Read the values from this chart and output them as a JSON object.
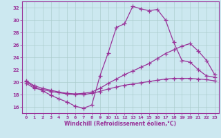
{
  "xlabel": "Windchill (Refroidissement éolien,°C)",
  "background_color": "#cce8f0",
  "line_color": "#993399",
  "grid_color": "#aacccc",
  "ylim": [
    15,
    33
  ],
  "xlim": [
    -0.5,
    23.5
  ],
  "yticks": [
    16,
    18,
    20,
    22,
    24,
    26,
    28,
    30,
    32
  ],
  "xticks": [
    0,
    1,
    2,
    3,
    4,
    5,
    6,
    7,
    8,
    9,
    10,
    11,
    12,
    13,
    14,
    15,
    16,
    17,
    18,
    19,
    20,
    21,
    22,
    23
  ],
  "hours": [
    0,
    1,
    2,
    3,
    4,
    5,
    6,
    7,
    8,
    9,
    10,
    11,
    12,
    13,
    14,
    15,
    16,
    17,
    18,
    19,
    20,
    21,
    22,
    23
  ],
  "s1": [
    20.1,
    19.2,
    18.6,
    17.9,
    17.3,
    16.8,
    16.1,
    15.8,
    16.3,
    21.0,
    24.7,
    28.8,
    29.4,
    32.2,
    31.8,
    31.5,
    31.7,
    30.0,
    26.4,
    23.5,
    23.2,
    22.0,
    21.0,
    20.8
  ],
  "s2": [
    20.2,
    19.4,
    19.0,
    18.7,
    18.4,
    18.2,
    18.1,
    18.2,
    18.4,
    19.0,
    19.8,
    20.5,
    21.2,
    21.8,
    22.4,
    23.0,
    23.8,
    24.6,
    25.2,
    25.8,
    26.2,
    25.0,
    23.5,
    21.2
  ],
  "s3": [
    19.8,
    19.0,
    18.8,
    18.5,
    18.3,
    18.1,
    18.0,
    18.0,
    18.2,
    18.5,
    18.9,
    19.2,
    19.5,
    19.7,
    19.9,
    20.1,
    20.3,
    20.5,
    20.6,
    20.6,
    20.6,
    20.5,
    20.4,
    20.2
  ]
}
